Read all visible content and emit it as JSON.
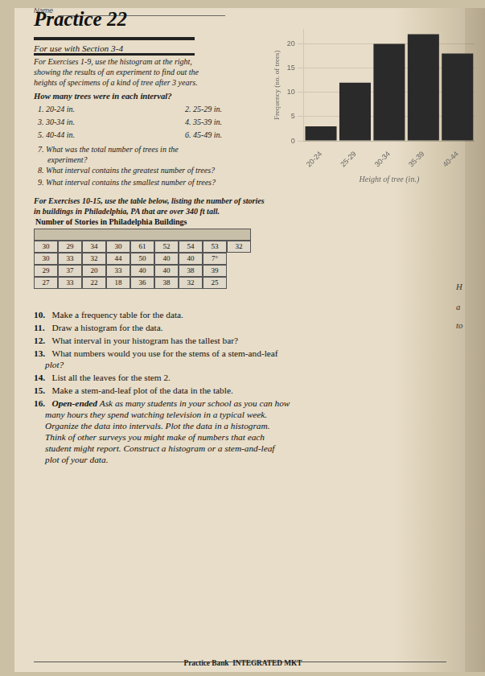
{
  "chart_data": {
    "type": "bar",
    "title": "Practice 22",
    "subtitle": "For use with Section 3-4",
    "name_label": "Name",
    "categories": [
      "20-24",
      "25-29",
      "30-34",
      "35-39",
      "40-44"
    ],
    "values": [
      3,
      12,
      20,
      22,
      18
    ],
    "color": "#2a2a2a",
    "x_label": "Height of tree (in.)",
    "y_label": "Frequency (no. of trees)",
    "ylim": [
      0,
      23
    ],
    "yticks": [
      0,
      5,
      10,
      15,
      20
    ],
    "grid": true,
    "intro": [
      "For Exercises 1-9, use the histogram at the right,",
      "showing the results of an experiment to find out the",
      "heights of specimens of a kind of tree after 3 years."
    ],
    "prompt": "How many trees were in each interval?",
    "exercises": [
      {
        "num": "1.",
        "text": "20-24 in."
      },
      {
        "num": "2.",
        "text": "25-29 in."
      },
      {
        "num": "3.",
        "text": "30-34 in."
      },
      {
        "num": "4.",
        "text": "35-39 in."
      },
      {
        "num": "5.",
        "text": "40-44 in."
      },
      {
        "num": "6.",
        "text": "45-49 in."
      }
    ],
    "questions": [
      {
        "num": "7.",
        "lines": [
          "What was the total number of trees in the",
          "experiment?"
        ]
      },
      {
        "num": "8.",
        "lines": [
          "What interval contains the greatest number of trees?"
        ]
      },
      {
        "num": "9.",
        "lines": [
          "What interval contains the smallest number of trees?"
        ]
      }
    ],
    "table_intro": [
      "For Exercises 10-15, use the table below, listing the number of stories",
      "in buildings in Philadelphia, PA that are over 340 ft tall."
    ],
    "table_title": "Number of Stories in Philadelphia Buildings",
    "table_rows": [
      [
        "30",
        "29",
        "34",
        "30",
        "61",
        "52",
        "54",
        "53",
        "32"
      ],
      [
        "30",
        "33",
        "32",
        "44",
        "50",
        "40",
        "40",
        "7°"
      ],
      [
        "29",
        "37",
        "20",
        "33",
        "40",
        "40",
        "38",
        "39"
      ],
      [
        "27",
        "33",
        "22",
        "18",
        "36",
        "38",
        "32",
        "25"
      ]
    ],
    "late_questions": [
      {
        "num": "10.",
        "lines": [
          "Make a frequency table for the data."
        ]
      },
      {
        "num": "11.",
        "lines": [
          "Draw a histogram for the data."
        ]
      },
      {
        "num": "12.",
        "lines": [
          "What interval in your histogram has the tallest bar?"
        ]
      },
      {
        "num": "13.",
        "lines": [
          "What numbers would you use for the stems of a stem-and-leaf",
          "plot?"
        ]
      },
      {
        "num": "14.",
        "lines": [
          "List all the leaves for the stem 2."
        ]
      },
      {
        "num": "15.",
        "lines": [
          "Make a stem-and-leaf plot of the data in the table."
        ]
      },
      {
        "num": "16.",
        "label": "Open-ended",
        "lines": [
          "Ask as many students in your school as you can how",
          "many hours they spend watching television in a typical week.",
          "Organize the data into intervals. Plot the data in a histogram.",
          "Think of other surveys you might make of numbers that each",
          "student might report. Construct a histogram or a stem-and-leaf",
          "plot of your data."
        ]
      }
    ],
    "right_labels": [
      "H",
      "a",
      "to"
    ],
    "footer": "Practice Bank  INTEGRATED MKT"
  }
}
